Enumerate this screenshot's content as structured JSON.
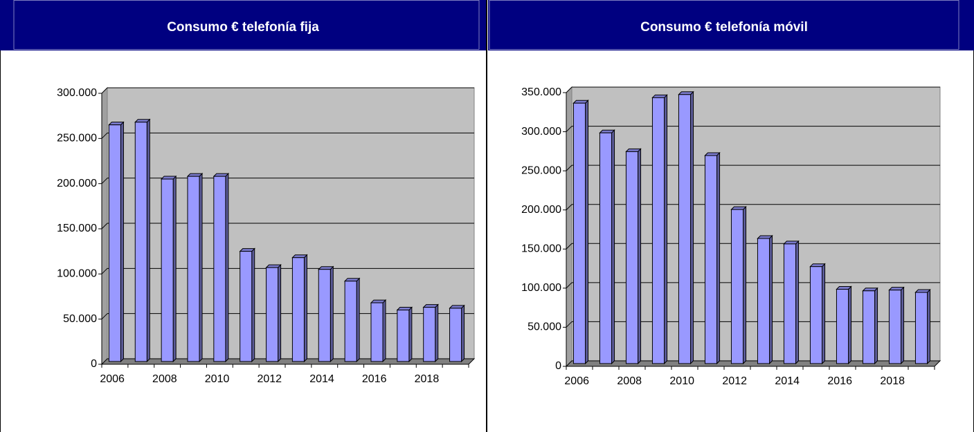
{
  "chart_data": [
    {
      "type": "bar3d",
      "title": "Consumo € telefonía fija",
      "categories": [
        "2006",
        null,
        "2008",
        null,
        "2010",
        null,
        "2012",
        null,
        "2014",
        null,
        "2016",
        null,
        "2018",
        null
      ],
      "values": [
        262000,
        265000,
        202000,
        205000,
        205000,
        122000,
        104000,
        115000,
        102000,
        89000,
        65000,
        57000,
        60000,
        59000
      ],
      "color": "#9999ff",
      "ylim": [
        0,
        300000
      ],
      "yticks": [
        0,
        {
          "value": 50000,
          "label": "50.000"
        },
        {
          "value": 100000,
          "label": "100.000"
        },
        {
          "value": 150000,
          "label": "150.000"
        },
        {
          "value": 200000,
          "label": "200.000"
        },
        {
          "value": 250000,
          "label": "250.000"
        },
        {
          "value": 300000,
          "label": "300.000"
        }
      ],
      "grid": true
    },
    {
      "type": "bar3d",
      "title": "Consumo € telefonía móvil",
      "categories": [
        "2006",
        null,
        "2008",
        null,
        "2010",
        null,
        "2012",
        null,
        "2014",
        null,
        "2016",
        null,
        "2018",
        null
      ],
      "values": [
        333000,
        295000,
        271000,
        340000,
        344000,
        266000,
        197000,
        160000,
        153000,
        124000,
        95000,
        93000,
        94000,
        91000
      ],
      "color": "#9999ff",
      "ylim": [
        0,
        350000
      ],
      "yticks": [
        0,
        {
          "value": 50000,
          "label": "50.000"
        },
        {
          "value": 100000,
          "label": "100.000"
        },
        {
          "value": 150000,
          "label": "150.000"
        },
        {
          "value": 200000,
          "label": "200.000"
        },
        {
          "value": 250000,
          "label": "250.000"
        },
        {
          "value": 300000,
          "label": "300.000"
        },
        {
          "value": 350000,
          "label": "350.000"
        }
      ],
      "grid": true
    }
  ]
}
